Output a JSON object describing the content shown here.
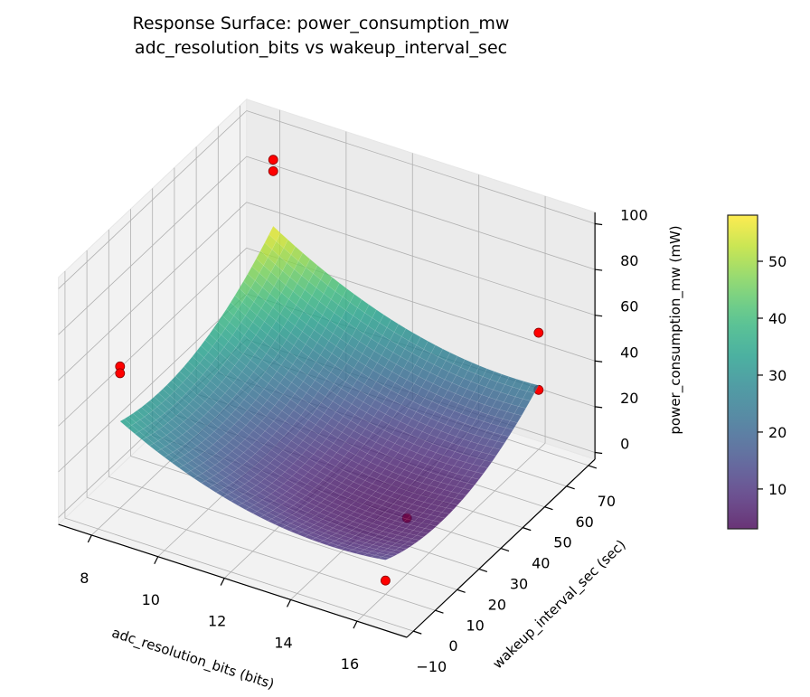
{
  "chart_data": {
    "type": "surface3d",
    "title": "Response Surface: power_consumption_mw",
    "subtitle": "adc_resolution_bits vs wakeup_interval_sec",
    "xlabel": "adc_resolution_bits (bits)",
    "ylabel": "wakeup_interval_sec (sec)",
    "zlabel": "power_consumption_mw (mW)",
    "xlim": [
      7,
      17.5
    ],
    "ylim": [
      -13,
      73
    ],
    "zlim": [
      -3,
      105
    ],
    "xticks": [
      8,
      10,
      12,
      14,
      16
    ],
    "yticks": [
      -10,
      0,
      10,
      20,
      30,
      40,
      50,
      60,
      70
    ],
    "zticks": [
      0,
      20,
      40,
      60,
      80,
      100
    ],
    "surface": {
      "x_range": [
        8,
        16
      ],
      "y_range": [
        0,
        70
      ],
      "corner_values": {
        "x8_y0": 35,
        "x8_y70": 57,
        "x16_y0": 12,
        "x16_y70": 25
      },
      "minimum": 4.4,
      "colormap": "viridis",
      "alpha": 0.8
    },
    "scatter": {
      "color": "#ff0000",
      "points": [
        {
          "x": 8,
          "y": 70,
          "z": 86
        },
        {
          "x": 8,
          "y": 70,
          "z": 81
        },
        {
          "x": 8,
          "y": 0,
          "z": 59
        },
        {
          "x": 8,
          "y": 0,
          "z": 56
        },
        {
          "x": 16,
          "y": 70,
          "z": 48
        },
        {
          "x": 16,
          "y": 70,
          "z": 23
        },
        {
          "x": 15,
          "y": 25,
          "z": 3
        },
        {
          "x": 16,
          "y": 0,
          "z": 3
        }
      ]
    },
    "colorbar": {
      "range": [
        3.0,
        58.1
      ],
      "ticks": [
        10,
        20,
        30,
        40,
        50
      ]
    },
    "grid": true
  }
}
